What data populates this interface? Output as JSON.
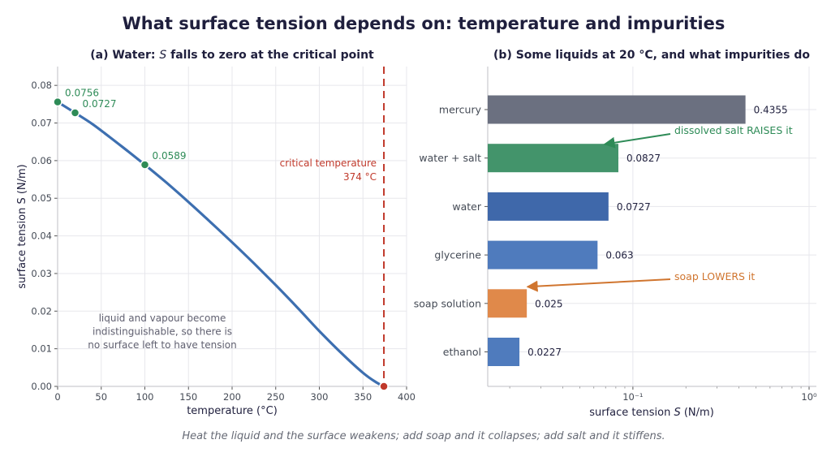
{
  "figure": {
    "title": "What surface tension depends on: temperature and impurities",
    "caption": "Heat the liquid and the surface weakens; add soap and it collapses; add salt and it stiffens."
  },
  "colors": {
    "curve": "#3d6fb0",
    "points": "#2e8b57",
    "critical": "#c0392b",
    "note": "#606070",
    "mercury": "#6b7080",
    "salt_water": "#43946b",
    "water": "#3f68aa",
    "glycerine": "#4f7bbd",
    "soap": "#e0894a",
    "ethanol": "#4f7bbd",
    "annot_salt": "#2e8b57",
    "annot_soap": "#d0752f"
  },
  "chart_data": [
    {
      "type": "line",
      "title": "(a) Water: S falls to zero at the critical point",
      "title_parts": {
        "pre": "(a) Water: ",
        "symbol": "S",
        "post": " falls to zero at the critical point"
      },
      "xlabel": "temperature   (°C)",
      "ylabel": "surface tension   S   (N/m)",
      "xlim": [
        0,
        400
      ],
      "ylim": [
        0,
        0.085
      ],
      "xticks": [
        0,
        50,
        100,
        150,
        200,
        250,
        300,
        350,
        400
      ],
      "yticks": [
        "0.00",
        "0.01",
        "0.02",
        "0.03",
        "0.04",
        "0.05",
        "0.06",
        "0.07",
        "0.08"
      ],
      "grid": true,
      "series": [
        {
          "x": [
            0,
            20,
            40,
            60,
            80,
            100,
            125,
            150,
            175,
            200,
            225,
            250,
            275,
            300,
            325,
            350,
            365,
            374
          ],
          "y": [
            0.0756,
            0.0727,
            0.0697,
            0.0662,
            0.0626,
            0.0589,
            0.0541,
            0.049,
            0.0437,
            0.0383,
            0.0327,
            0.0269,
            0.0209,
            0.0147,
            0.0089,
            0.0036,
            0.0011,
            0.0
          ]
        }
      ],
      "labeled_points": [
        {
          "x": 0,
          "y": 0.0756,
          "label": "0.0756"
        },
        {
          "x": 20,
          "y": 0.0727,
          "label": "0.0727"
        },
        {
          "x": 100,
          "y": 0.0589,
          "label": "0.0589"
        }
      ],
      "critical_point": {
        "x": 374,
        "y": 0.0
      },
      "critical_line": {
        "x": 374,
        "label_lines": [
          "critical temperature",
          "374 °C"
        ]
      },
      "note_lines": [
        "liquid and vapour become",
        "indistinguishable, so there is",
        "no surface left to have tension"
      ]
    },
    {
      "type": "bar",
      "orientation": "horizontal",
      "title": "(b) Some liquids at 20 °C, and what impurities do",
      "xlabel": "surface tension   S   (N/m)",
      "xlabel_parts": {
        "pre": "surface tension   ",
        "symbol": "S",
        "post": "   (N/m)"
      },
      "xscale": "log",
      "xlim": [
        0.015,
        1.1
      ],
      "xtick_labels": [
        {
          "value": 0.1,
          "label": "10⁻¹"
        },
        {
          "value": 1,
          "label": "10⁰"
        }
      ],
      "grid": true,
      "categories": [
        "mercury",
        "water + salt",
        "water",
        "glycerine",
        "soap solution",
        "ethanol"
      ],
      "values": [
        0.4355,
        0.0827,
        0.0727,
        0.063,
        0.025,
        0.0227
      ],
      "value_labels": [
        "0.4355",
        "0.0827",
        "0.0727",
        "0.063",
        "0.025",
        "0.0227"
      ],
      "annotations": [
        {
          "text": "dissolved salt RAISES it",
          "target": "water + salt"
        },
        {
          "text": "soap LOWERS it",
          "target": "soap solution"
        }
      ]
    }
  ]
}
